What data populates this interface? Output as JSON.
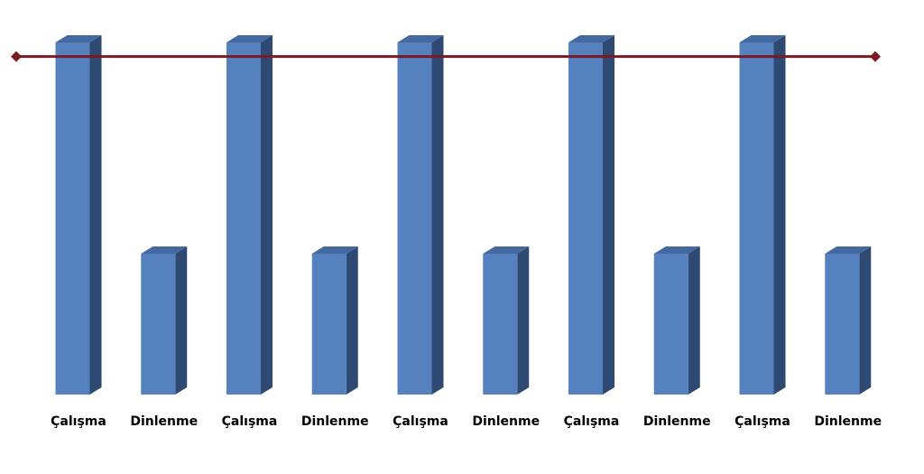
{
  "chart_data": {
    "type": "bar",
    "categories": [
      "Çalışma",
      "Dinlenme",
      "Çalışma",
      "Dinlenme",
      "Çalışma",
      "Dinlenme",
      "Çalışma",
      "Dinlenme",
      "Çalışma",
      "Dinlenme"
    ],
    "values": [
      100,
      40,
      100,
      40,
      100,
      40,
      100,
      40,
      100,
      40
    ],
    "ylim": [
      0,
      100
    ],
    "reference_line": {
      "value": 96
    },
    "grid": false,
    "legend": "none",
    "colors": {
      "bar_front": "#5581bf",
      "bar_side": "#2e4a72",
      "bar_top": "#4468a0",
      "line": "#7a1a22",
      "marker": "#7a1a22"
    }
  }
}
